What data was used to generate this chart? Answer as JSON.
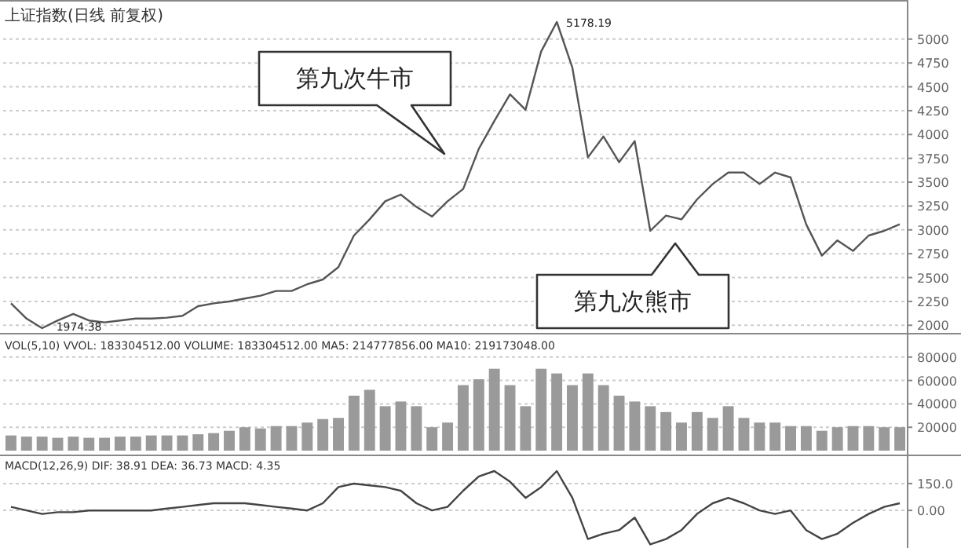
{
  "chart_data": [
    {
      "type": "line",
      "title": "上证指数(日线 前复权)",
      "color": "#555555",
      "categories": [
        null,
        null,
        null,
        null,
        null,
        null,
        null,
        null,
        null,
        null,
        null,
        null,
        null,
        null,
        null,
        null,
        null,
        null,
        null,
        null,
        null,
        null,
        null,
        null,
        null,
        null,
        null,
        null,
        null,
        null,
        null,
        null,
        null,
        null,
        null,
        null,
        null,
        null,
        null,
        null,
        null,
        null,
        null,
        null,
        null,
        null,
        null,
        null,
        null,
        null,
        null,
        null,
        null,
        null,
        null,
        null,
        null,
        null
      ],
      "values": [
        2230,
        2070,
        1970,
        2050,
        2120,
        2050,
        2030,
        2050,
        2070,
        2070,
        2080,
        2100,
        2200,
        2230,
        2250,
        2280,
        2310,
        2360,
        2360,
        2430,
        2480,
        2610,
        2940,
        3110,
        3300,
        3370,
        3240,
        3140,
        3300,
        3430,
        3850,
        4140,
        4420,
        4260,
        4870,
        5180,
        4700,
        3760,
        3980,
        3710,
        3930,
        2990,
        3150,
        3110,
        3320,
        3480,
        3600,
        3600,
        3480,
        3600,
        3550,
        3060,
        2730,
        2890,
        2780,
        2940,
        2990,
        3060
      ],
      "ylim": [
        1920,
        5410
      ],
      "yticks": [
        2000,
        2250,
        2500,
        2750,
        3000,
        3250,
        3500,
        3750,
        4000,
        4250,
        4500,
        4750,
        5000
      ],
      "grid": "y",
      "tick_labels": "y",
      "annotations": [
        "第九次牛市",
        "第九次熊市",
        "5178.19",
        "1974.38"
      ]
    },
    {
      "type": "bar",
      "title": "VOL(5,10) VVOL: 183304512.00 VOLUME: 183304512.00 MA5: 214777856.00 MA10: 219173048.00",
      "color": "#9a9a9a",
      "categories": [
        null,
        null,
        null,
        null,
        null,
        null,
        null,
        null,
        null,
        null,
        null,
        null,
        null,
        null,
        null,
        null,
        null,
        null,
        null,
        null,
        null,
        null,
        null,
        null,
        null,
        null,
        null,
        null,
        null,
        null,
        null,
        null,
        null,
        null,
        null,
        null,
        null,
        null,
        null,
        null,
        null,
        null,
        null,
        null,
        null,
        null,
        null,
        null,
        null,
        null,
        null,
        null,
        null,
        null,
        null,
        null,
        null,
        null
      ],
      "values": [
        13000,
        12000,
        12000,
        11000,
        12000,
        11000,
        11000,
        12000,
        12000,
        13000,
        13000,
        13000,
        14000,
        15000,
        17000,
        20000,
        19000,
        21000,
        21000,
        24000,
        27000,
        28000,
        47000,
        52000,
        38000,
        42000,
        38000,
        20000,
        24000,
        56000,
        61000,
        70000,
        56000,
        38000,
        70000,
        66000,
        56000,
        66000,
        56000,
        47000,
        42000,
        38000,
        33000,
        24000,
        33000,
        28000,
        38000,
        28000,
        24000,
        24000,
        21000,
        21000,
        17000,
        20000,
        21000,
        21000,
        20000,
        20000
      ],
      "ylim": [
        0,
        100000
      ],
      "yticks": [
        20000,
        40000,
        60000,
        80000
      ],
      "grid": "y",
      "tick_labels": "y"
    },
    {
      "type": "line",
      "title": "MACD(12,26,9) DIF: 38.91 DEA: 36.73 MACD: 4.35",
      "color": "#444444",
      "categories": [
        null,
        null,
        null,
        null,
        null,
        null,
        null,
        null,
        null,
        null,
        null,
        null,
        null,
        null,
        null,
        null,
        null,
        null,
        null,
        null,
        null,
        null,
        null,
        null,
        null,
        null,
        null,
        null,
        null,
        null,
        null,
        null,
        null,
        null,
        null,
        null,
        null,
        null,
        null,
        null,
        null,
        null,
        null,
        null,
        null,
        null,
        null,
        null,
        null,
        null,
        null,
        null,
        null,
        null,
        null,
        null,
        null,
        null
      ],
      "values": [
        20,
        0,
        -20,
        -10,
        -10,
        0,
        0,
        0,
        0,
        0,
        10,
        20,
        30,
        40,
        40,
        40,
        30,
        20,
        10,
        0,
        40,
        130,
        150,
        140,
        130,
        110,
        40,
        0,
        20,
        110,
        190,
        220,
        160,
        70,
        130,
        220,
        70,
        -160,
        -130,
        -110,
        -40,
        -190,
        -160,
        -110,
        -20,
        40,
        70,
        40,
        0,
        -20,
        0,
        -110,
        -160,
        -130,
        -70,
        -20,
        20,
        40
      ],
      "ylim": [
        -210,
        290
      ],
      "yticks": [
        {
          "value": 150,
          "label": "150.0"
        },
        {
          "value": 0,
          "label": "0.00"
        }
      ],
      "grid": "y",
      "tick_labels": "y"
    }
  ]
}
